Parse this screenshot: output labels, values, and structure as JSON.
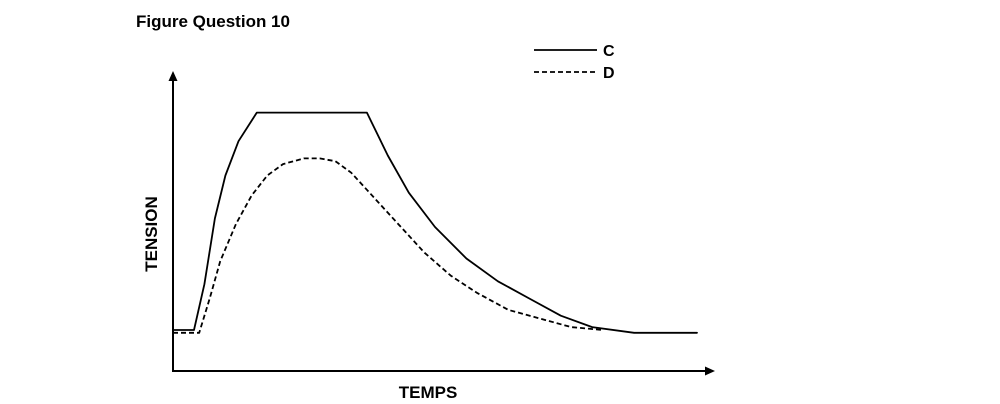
{
  "figure": {
    "title": "Figure Question 10"
  },
  "chart_data": {
    "type": "line",
    "title": "Figure Question 10",
    "xlabel": "TEMPS",
    "ylabel": "TENSION",
    "grid": false,
    "legend_position": "top-right",
    "axis_ticks": false,
    "xlim": [
      0,
      100
    ],
    "ylim": [
      0,
      100
    ],
    "series": [
      {
        "name": "C",
        "style": "solid",
        "color": "#000000",
        "points": [
          [
            0,
            14
          ],
          [
            4,
            14
          ],
          [
            6,
            30
          ],
          [
            8,
            53
          ],
          [
            10,
            68
          ],
          [
            12.5,
            80
          ],
          [
            16,
            90
          ],
          [
            37,
            90
          ],
          [
            41,
            75
          ],
          [
            45,
            62
          ],
          [
            50,
            50
          ],
          [
            56,
            39
          ],
          [
            62,
            31
          ],
          [
            68,
            25
          ],
          [
            74,
            19
          ],
          [
            80,
            15
          ],
          [
            88,
            13
          ],
          [
            100,
            13
          ]
        ]
      },
      {
        "name": "D",
        "style": "dashed",
        "color": "#000000",
        "points": [
          [
            0,
            13
          ],
          [
            5,
            13
          ],
          [
            7,
            25
          ],
          [
            9,
            38
          ],
          [
            12,
            51
          ],
          [
            15,
            61
          ],
          [
            18,
            68
          ],
          [
            21,
            72
          ],
          [
            25,
            74
          ],
          [
            28,
            74
          ],
          [
            31,
            73
          ],
          [
            34,
            69
          ],
          [
            37,
            63
          ],
          [
            40,
            57
          ],
          [
            44,
            49
          ],
          [
            48,
            41
          ],
          [
            53,
            33
          ],
          [
            58,
            27
          ],
          [
            64,
            21
          ],
          [
            70,
            18
          ],
          [
            76,
            15
          ],
          [
            82,
            14
          ]
        ]
      }
    ]
  }
}
